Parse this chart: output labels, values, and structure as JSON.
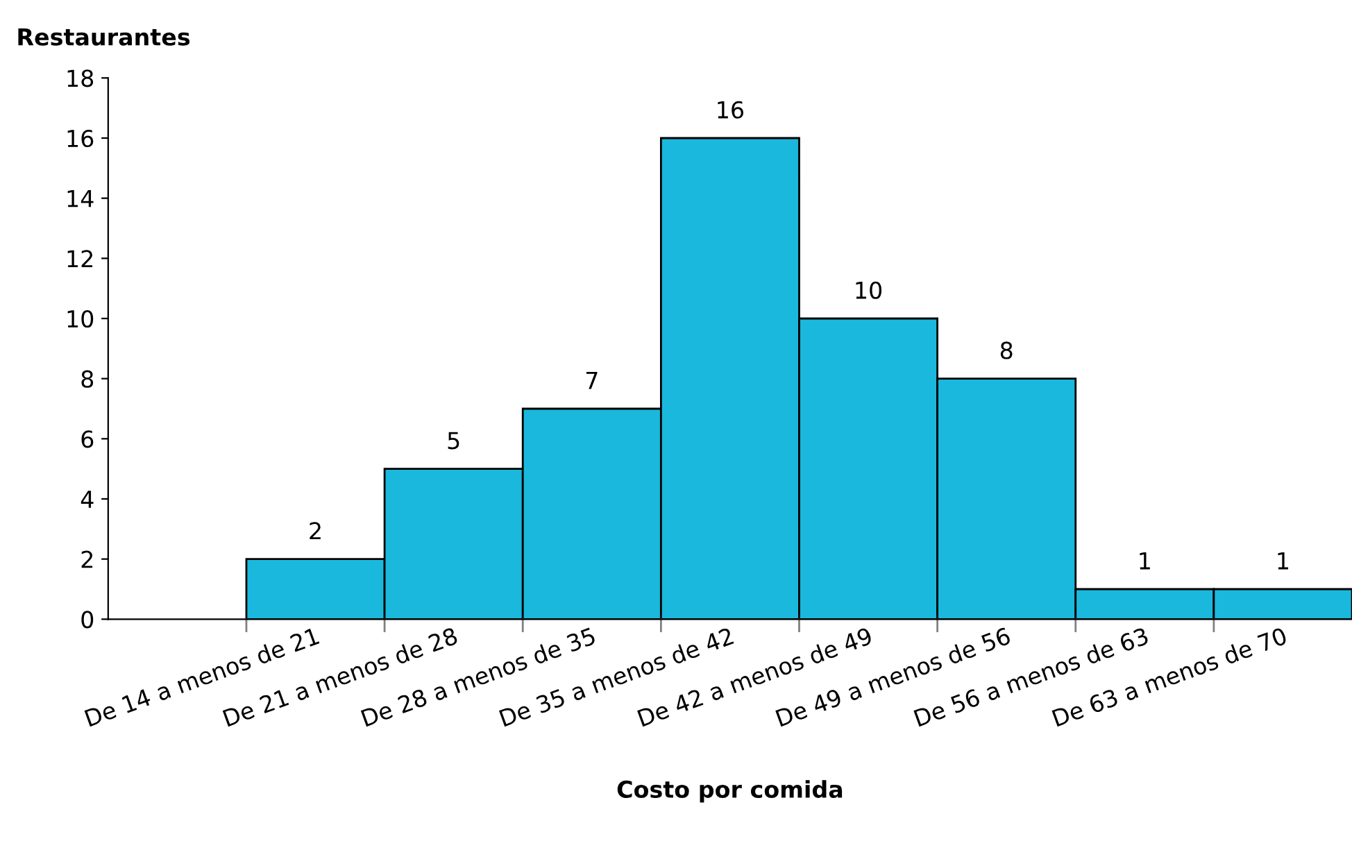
{
  "chart_data": {
    "type": "bar",
    "xlabel": "Costo por comida",
    "ylabel": "Restaurantes",
    "categories": [
      null,
      "De 14 a menos de 21",
      "De 21 a menos de 28",
      "De 28 a menos de 35",
      "De 35 a menos de 42",
      "De 42 a menos de 49",
      "De 49 a menos de 56",
      "De 56 a menos de 63",
      "De 63 a menos de 70"
    ],
    "values": [
      null,
      2,
      5,
      7,
      16,
      10,
      8,
      1,
      1
    ],
    "color": "#1ab8dc",
    "ylim": [
      0,
      18
    ],
    "yticks": [
      0,
      2,
      4,
      6,
      8,
      10,
      12,
      14,
      16,
      18
    ],
    "data_labels": true,
    "grid": false,
    "legend": false
  }
}
